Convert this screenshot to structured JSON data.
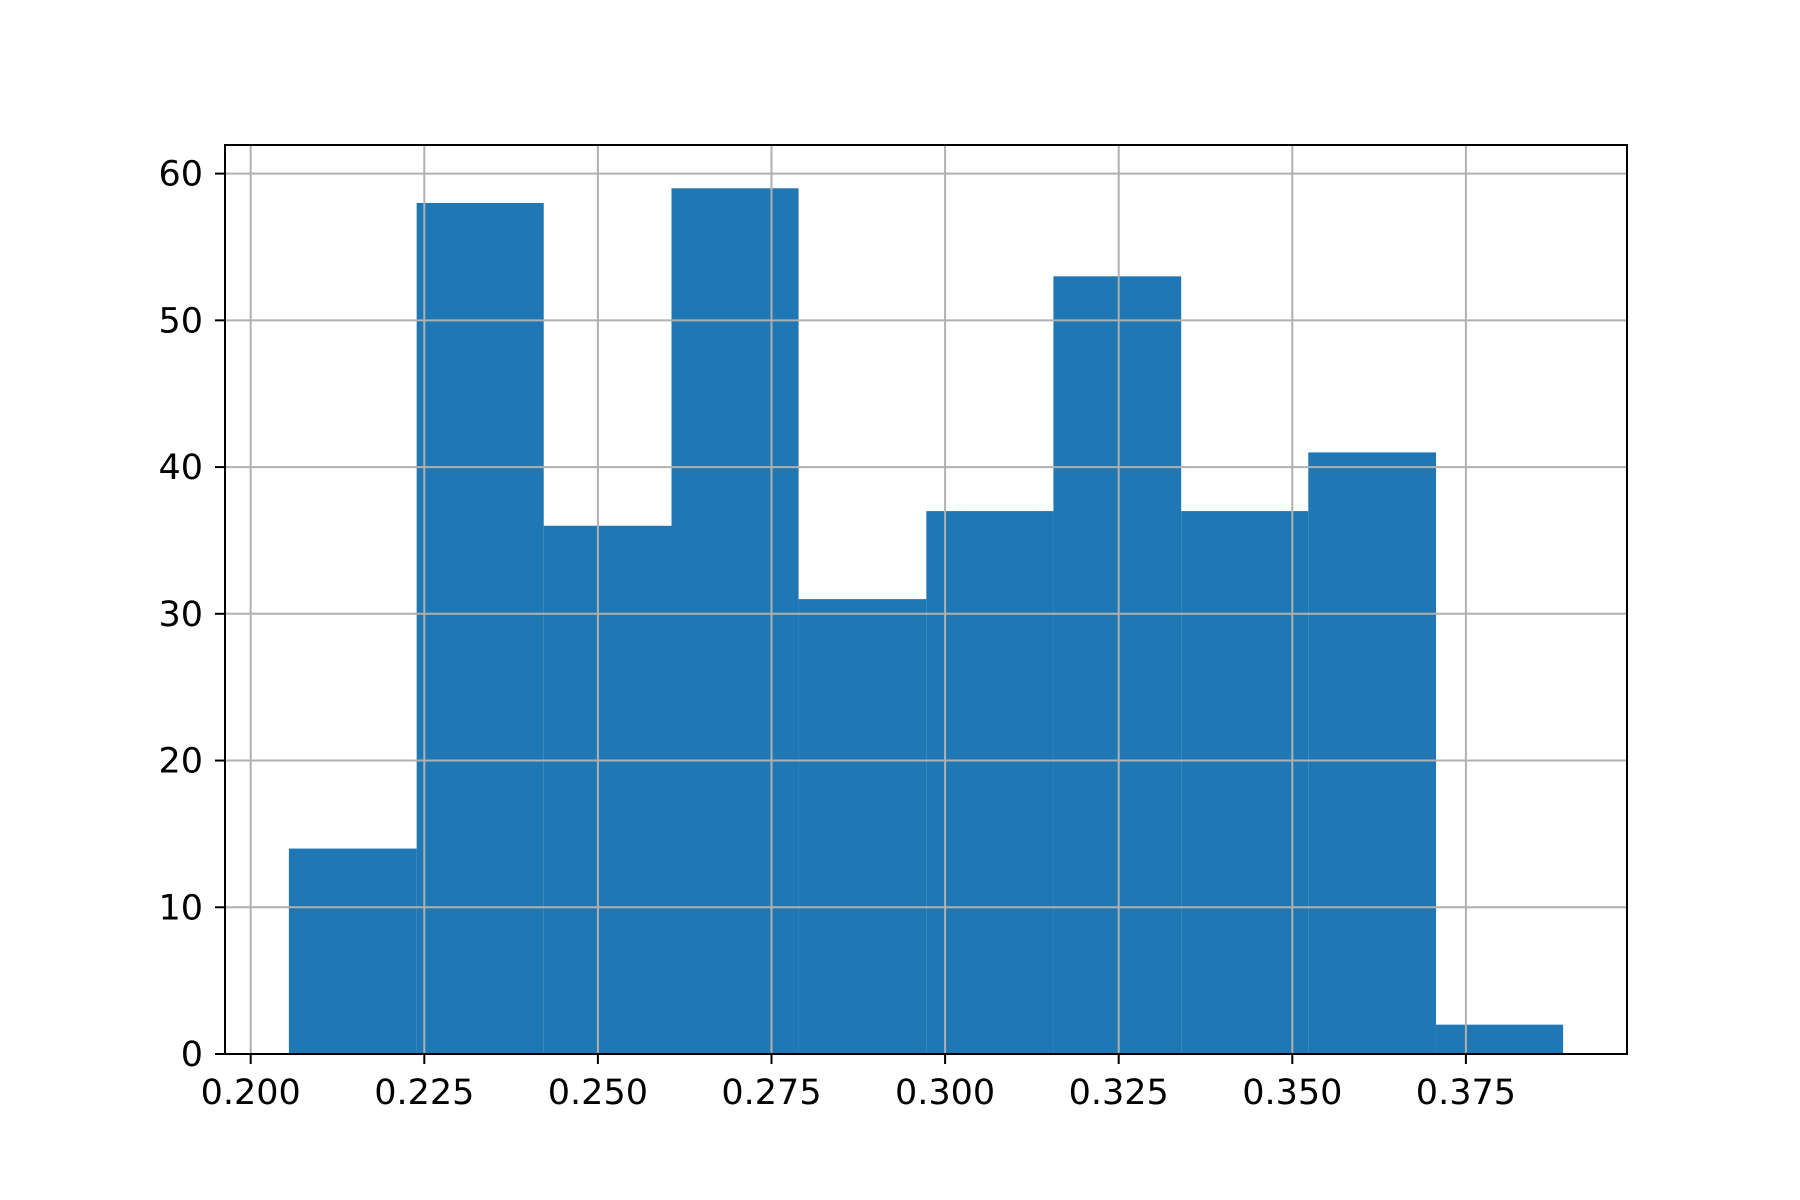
{
  "chart_data": {
    "type": "bar",
    "bins": [
      {
        "x0": 0.2055,
        "x1": 0.2239,
        "count": 14
      },
      {
        "x0": 0.2239,
        "x1": 0.2422,
        "count": 58
      },
      {
        "x0": 0.2422,
        "x1": 0.2606,
        "count": 36
      },
      {
        "x0": 0.2606,
        "x1": 0.2789,
        "count": 59
      },
      {
        "x0": 0.2789,
        "x1": 0.2973,
        "count": 31
      },
      {
        "x0": 0.2973,
        "x1": 0.3156,
        "count": 37
      },
      {
        "x0": 0.3156,
        "x1": 0.334,
        "count": 53
      },
      {
        "x0": 0.334,
        "x1": 0.3523,
        "count": 37
      },
      {
        "x0": 0.3523,
        "x1": 0.3707,
        "count": 41
      },
      {
        "x0": 0.3707,
        "x1": 0.389,
        "count": 2
      }
    ],
    "bar_color": "#1f77b4",
    "grid_color": "#b0b0b0",
    "grid": true,
    "xlim": [
      0.1963,
      0.3982
    ],
    "ylim": [
      0,
      61.95
    ],
    "xticks": [
      {
        "value": 0.2,
        "label": "0.200"
      },
      {
        "value": 0.225,
        "label": "0.225"
      },
      {
        "value": 0.25,
        "label": "0.250"
      },
      {
        "value": 0.275,
        "label": "0.275"
      },
      {
        "value": 0.3,
        "label": "0.300"
      },
      {
        "value": 0.325,
        "label": "0.325"
      },
      {
        "value": 0.35,
        "label": "0.350"
      },
      {
        "value": 0.375,
        "label": "0.375"
      }
    ],
    "yticks": [
      {
        "value": 0,
        "label": "0"
      },
      {
        "value": 10,
        "label": "10"
      },
      {
        "value": 20,
        "label": "20"
      },
      {
        "value": 30,
        "label": "30"
      },
      {
        "value": 40,
        "label": "40"
      },
      {
        "value": 50,
        "label": "50"
      },
      {
        "value": 60,
        "label": "60"
      }
    ],
    "title": "",
    "xlabel": "",
    "ylabel": ""
  }
}
